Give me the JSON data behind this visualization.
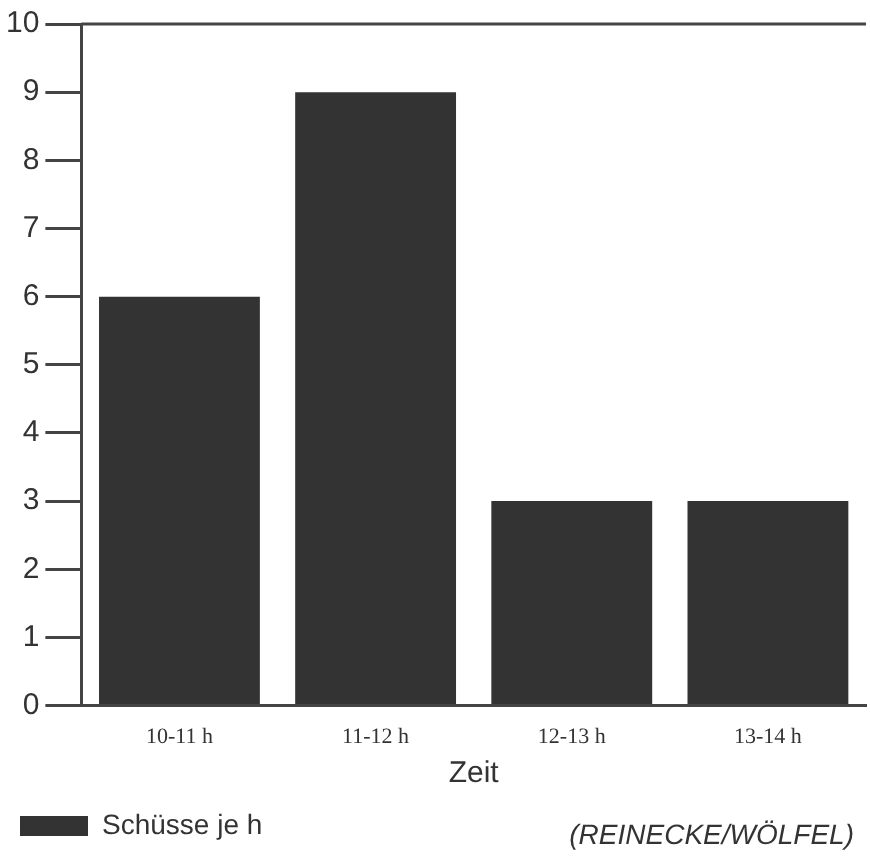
{
  "chart_data": {
    "type": "bar",
    "xlabel": "Zeit",
    "categories": [
      "10-11 h",
      "11-12 h",
      "12-13 h",
      "13-14 h"
    ],
    "series": [
      {
        "name": "Schüsse je h",
        "color": "#333333",
        "values": [
          6,
          9,
          3,
          3
        ]
      }
    ],
    "ylim": [
      0,
      10
    ],
    "yticks": [
      0,
      1,
      2,
      3,
      4,
      5,
      6,
      7,
      8,
      9,
      10
    ],
    "grid": false,
    "legend": "bottom left",
    "annotations": [
      "(REINECKE/WÖLFEL)"
    ]
  }
}
